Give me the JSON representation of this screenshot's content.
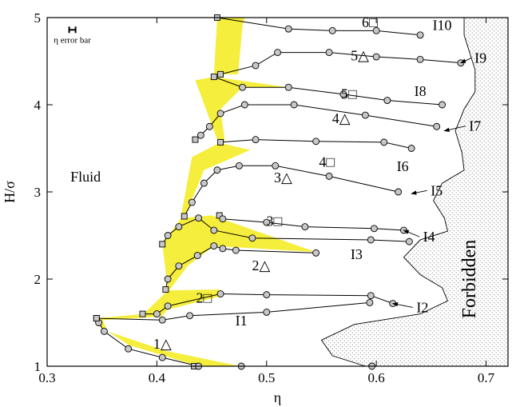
{
  "chart_data": {
    "type": "scatter",
    "xlabel": "η",
    "ylabel": "H/σ",
    "xlim": [
      0.3,
      0.72
    ],
    "ylim": [
      1,
      5
    ],
    "xticks": [
      0.3,
      0.4,
      0.5,
      0.6,
      0.7
    ],
    "xtick_labels": [
      "0.3",
      "0.4",
      "0.5",
      "0.6",
      "0.7"
    ],
    "yticks": [
      1,
      2,
      3,
      4,
      5
    ],
    "ytick_labels": [
      "1",
      "2",
      "3",
      "4",
      "5"
    ],
    "colors": {
      "band_fill": "#f5ee3c",
      "marker_fill": "#c8c8c8",
      "line": "#000000",
      "forbidden_dots": "#555555"
    },
    "error_bar_legend": {
      "label": "η error bar"
    },
    "regions": [
      {
        "label": "Fluid",
        "x": 0.335,
        "y": 3.12
      },
      {
        "label": "Forbidden",
        "x": 0.69,
        "y": 2.0
      }
    ],
    "phase_labels": [
      {
        "label": "1△",
        "x": 0.405,
        "y": 1.2
      },
      {
        "label": "2□",
        "x": 0.443,
        "y": 1.73
      },
      {
        "label": "2△",
        "x": 0.495,
        "y": 2.1
      },
      {
        "label": "3□",
        "x": 0.507,
        "y": 2.61
      },
      {
        "label": "3△",
        "x": 0.515,
        "y": 3.11
      },
      {
        "label": "4□",
        "x": 0.555,
        "y": 3.29
      },
      {
        "label": "4△",
        "x": 0.568,
        "y": 3.79
      },
      {
        "label": "5□",
        "x": 0.575,
        "y": 4.07
      },
      {
        "label": "5△",
        "x": 0.585,
        "y": 4.51
      },
      {
        "label": "6□",
        "x": 0.594,
        "y": 4.89
      }
    ],
    "line_labels": [
      {
        "label": "I1",
        "x": 0.477,
        "y": 1.47,
        "ax": null,
        "ay": null
      },
      {
        "label": "I2",
        "x": 0.642,
        "y": 1.62,
        "ax": 0.615,
        "ay": 1.72
      },
      {
        "label": "I3",
        "x": 0.582,
        "y": 2.23,
        "ax": null,
        "ay": null
      },
      {
        "label": "I4",
        "x": 0.648,
        "y": 2.43,
        "ax": 0.625,
        "ay": 2.56
      },
      {
        "label": "I5",
        "x": 0.655,
        "y": 2.96,
        "ax": 0.632,
        "ay": 2.98
      },
      {
        "label": "I6",
        "x": 0.624,
        "y": 3.24,
        "ax": null,
        "ay": null
      },
      {
        "label": "I7",
        "x": 0.69,
        "y": 3.7,
        "ax": 0.662,
        "ay": 3.7
      },
      {
        "label": "I8",
        "x": 0.64,
        "y": 4.1,
        "ax": null,
        "ay": null
      },
      {
        "label": "I9",
        "x": 0.695,
        "y": 4.48,
        "ax": 0.677,
        "ay": 4.48
      },
      {
        "label": "I10",
        "x": 0.66,
        "y": 4.86,
        "ax": null,
        "ay": null
      }
    ],
    "bands": [
      {
        "name": "1",
        "left": [
          [
            0.345,
            1.55
          ],
          [
            0.348,
            1.46
          ],
          [
            0.375,
            1.24
          ],
          [
            0.438,
            1.0
          ]
        ],
        "right": [
          [
            0.35,
            1.55
          ],
          [
            0.355,
            1.4
          ],
          [
            0.407,
            1.18
          ],
          [
            0.476,
            1.0
          ]
        ]
      },
      {
        "name": "2",
        "left": [
          [
            0.345,
            1.55
          ],
          [
            0.388,
            1.6
          ],
          [
            0.41,
            1.87
          ],
          [
            0.457,
            1.88
          ]
        ],
        "right": [
          [
            0.35,
            1.53
          ],
          [
            0.404,
            1.57
          ],
          [
            0.41,
            1.65
          ],
          [
            0.457,
            1.8
          ]
        ]
      },
      {
        "name": "3",
        "left": [
          [
            0.41,
            1.88
          ],
          [
            0.405,
            2.4
          ],
          [
            0.422,
            2.7
          ],
          [
            0.45,
            2.73
          ]
        ],
        "right": [
          [
            0.41,
            1.85
          ],
          [
            0.428,
            2.15
          ],
          [
            0.452,
            2.38
          ],
          [
            0.545,
            2.31
          ]
        ]
      },
      {
        "name": "4",
        "left": [
          [
            0.422,
            2.72
          ],
          [
            0.432,
            3.4
          ],
          [
            0.458,
            3.57
          ],
          [
            0.455,
            3.57
          ]
        ],
        "right": [
          [
            0.425,
            2.7
          ],
          [
            0.443,
            3.25
          ],
          [
            0.485,
            3.48
          ]
        ]
      },
      {
        "name": "5",
        "left": [
          [
            0.455,
            3.6
          ],
          [
            0.435,
            4.28
          ],
          [
            0.452,
            4.32
          ],
          [
            0.452,
            4.32
          ]
        ],
        "right": [
          [
            0.462,
            3.58
          ],
          [
            0.458,
            3.95
          ],
          [
            0.478,
            4.2
          ],
          [
            0.52,
            4.2
          ]
        ]
      },
      {
        "name": "6",
        "left": [
          [
            0.452,
            4.35
          ],
          [
            0.455,
            5.0
          ],
          [
            0.477,
            5.0
          ]
        ],
        "right": [
          [
            0.474,
            4.35
          ],
          [
            0.478,
            4.9
          ],
          [
            0.48,
            5.0
          ]
        ]
      }
    ],
    "series": [
      {
        "x": [
          0.434,
          0.477,
          0.596
        ],
        "y": [
          1.0,
          1.0,
          1.0
        ]
      },
      {
        "x": [
          0.345,
          0.347,
          0.352,
          0.374,
          0.405,
          0.438
        ],
        "y": [
          1.55,
          1.5,
          1.4,
          1.2,
          1.1,
          1.0
        ]
      },
      {
        "x": [
          0.345,
          0.405,
          0.43,
          0.5,
          0.594
        ],
        "y": [
          1.55,
          1.53,
          1.58,
          1.62,
          1.73
        ]
      },
      {
        "x": [
          0.387,
          0.4,
          0.41,
          0.458,
          0.5,
          0.595,
          0.615
        ],
        "y": [
          1.6,
          1.6,
          1.69,
          1.83,
          1.82,
          1.81,
          1.72
        ]
      },
      {
        "x": [
          0.408,
          0.41,
          0.42,
          0.437,
          0.452,
          0.46,
          0.472,
          0.545
        ],
        "y": [
          1.88,
          2.0,
          2.15,
          2.27,
          2.38,
          2.35,
          2.33,
          2.3
        ]
      },
      {
        "x": [
          0.457,
          0.46,
          0.5,
          0.535,
          0.598,
          0.625
        ],
        "y": [
          2.73,
          2.69,
          2.65,
          2.6,
          2.58,
          2.56
        ]
      },
      {
        "x": [
          0.405,
          0.41,
          0.42,
          0.438,
          0.452,
          0.487,
          0.595,
          0.63
        ],
        "y": [
          2.4,
          2.5,
          2.6,
          2.7,
          2.56,
          2.47,
          2.45,
          2.43
        ]
      },
      {
        "x": [
          0.425,
          0.432,
          0.443,
          0.455,
          0.475,
          0.508,
          0.557,
          0.62
        ],
        "y": [
          2.72,
          2.88,
          3.1,
          3.25,
          3.3,
          3.3,
          3.18,
          3.0
        ]
      },
      {
        "x": [
          0.458,
          0.49,
          0.545,
          0.607,
          0.632
        ],
        "y": [
          3.57,
          3.6,
          3.58,
          3.57,
          3.5
        ]
      },
      {
        "x": [
          0.435,
          0.44,
          0.448,
          0.458,
          0.48,
          0.525,
          0.59,
          0.655
        ],
        "y": [
          3.6,
          3.65,
          3.75,
          3.9,
          4.0,
          4.0,
          3.88,
          3.75
        ]
      },
      {
        "x": [
          0.452,
          0.478,
          0.52,
          0.57,
          0.61,
          0.66
        ],
        "y": [
          4.32,
          4.2,
          4.2,
          4.12,
          4.05,
          4.0
        ]
      },
      {
        "x": [
          0.458,
          0.49,
          0.51,
          0.557,
          0.6,
          0.64,
          0.677
        ],
        "y": [
          4.35,
          4.45,
          4.6,
          4.6,
          4.55,
          4.52,
          4.48
        ]
      },
      {
        "x": [
          0.455,
          0.52,
          0.56,
          0.6,
          0.64
        ],
        "y": [
          5.0,
          4.87,
          4.85,
          4.85,
          4.8
        ]
      }
    ]
  }
}
